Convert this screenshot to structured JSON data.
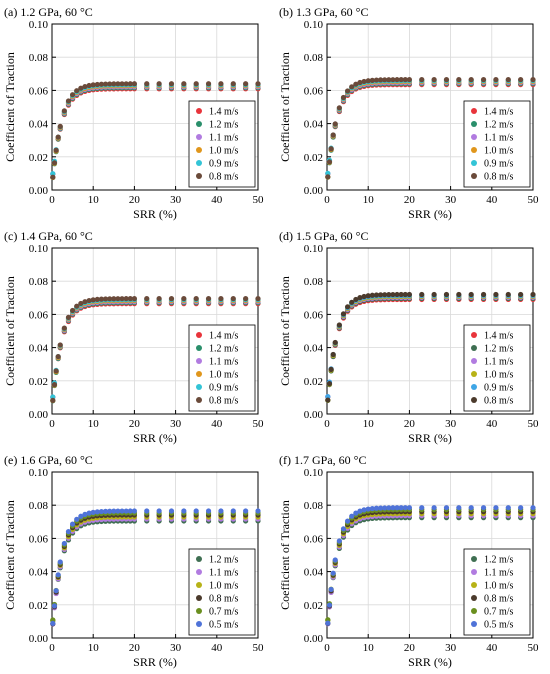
{
  "colors": {
    "red": "#e8343b",
    "green": "#2a8f6b",
    "violet": "#b17be0",
    "orange": "#e0961c",
    "cyan": "#33c4d6",
    "brown": "#6a4a3a",
    "darkgreen": "#3f6f52",
    "olive": "#b7b217",
    "darkbrown": "#4b3a2c",
    "mossgreen": "#6a8f1f",
    "blue": "#4f73d8",
    "skyblue": "#3fa6e6"
  },
  "chart_data": [
    {
      "type": "scatter",
      "title": "(a) 1.2 GPa, 60 °C",
      "xlabel": "SRR (%)",
      "ylabel": "Coefficient of Traction",
      "xlim": [
        0,
        50
      ],
      "ylim": [
        0,
        0.1
      ],
      "xticks": [
        "0",
        "10",
        "20",
        "30",
        "40",
        "50"
      ],
      "yticks": [
        "0.00",
        "0.02",
        "0.04",
        "0.06",
        "0.08",
        "0.10"
      ],
      "grid": true,
      "legend": "bottom-right",
      "plateau": 0.0625,
      "spread": 0.0015,
      "series": [
        {
          "name": "1.4 m/s",
          "color": "#e8343b"
        },
        {
          "name": "1.2 m/s",
          "color": "#2a8f6b"
        },
        {
          "name": "1.1 m/s",
          "color": "#b17be0"
        },
        {
          "name": "1.0 m/s",
          "color": "#e0961c"
        },
        {
          "name": "0.9 m/s",
          "color": "#33c4d6"
        },
        {
          "name": "0.8 m/s",
          "color": "#6a4a3a"
        }
      ]
    },
    {
      "type": "scatter",
      "title": "(b) 1.3 GPa, 60 °C",
      "xlabel": "SRR (%)",
      "ylabel": "Coefficient of Traction",
      "xlim": [
        0,
        50
      ],
      "ylim": [
        0,
        0.1
      ],
      "xticks": [
        "0",
        "10",
        "20",
        "30",
        "40",
        "50"
      ],
      "yticks": [
        "0.00",
        "0.02",
        "0.04",
        "0.06",
        "0.08",
        "0.10"
      ],
      "grid": true,
      "legend": "bottom-right",
      "plateau": 0.065,
      "spread": 0.0015,
      "series": [
        {
          "name": "1.4 m/s",
          "color": "#e8343b"
        },
        {
          "name": "1.2 m/s",
          "color": "#2a8f6b"
        },
        {
          "name": "1.1 m/s",
          "color": "#b17be0"
        },
        {
          "name": "1.0 m/s",
          "color": "#e0961c"
        },
        {
          "name": "0.9 m/s",
          "color": "#33c4d6"
        },
        {
          "name": "0.8 m/s",
          "color": "#6a4a3a"
        }
      ]
    },
    {
      "type": "scatter",
      "title": "(c) 1.4 GPa, 60 °C",
      "xlabel": "SRR (%)",
      "ylabel": "Coefficient of Traction",
      "xlim": [
        0,
        50
      ],
      "ylim": [
        0,
        0.1
      ],
      "xticks": [
        "0",
        "10",
        "20",
        "30",
        "40",
        "50"
      ],
      "yticks": [
        "0.00",
        "0.02",
        "0.04",
        "0.06",
        "0.08",
        "0.10"
      ],
      "grid": true,
      "legend": "bottom-right",
      "plateau": 0.068,
      "spread": 0.0015,
      "series": [
        {
          "name": "1.4 m/s",
          "color": "#e8343b"
        },
        {
          "name": "1.2 m/s",
          "color": "#2a8f6b"
        },
        {
          "name": "1.1 m/s",
          "color": "#b17be0"
        },
        {
          "name": "1.0 m/s",
          "color": "#e0961c"
        },
        {
          "name": "0.9 m/s",
          "color": "#33c4d6"
        },
        {
          "name": "0.8 m/s",
          "color": "#6a4a3a"
        }
      ]
    },
    {
      "type": "scatter",
      "title": "(d) 1.5 GPa, 60 °C",
      "xlabel": "SRR (%)",
      "ylabel": "Coefficient of Traction",
      "xlim": [
        0,
        50
      ],
      "ylim": [
        0,
        0.1
      ],
      "xticks": [
        "0",
        "10",
        "20",
        "30",
        "40",
        "50"
      ],
      "yticks": [
        "0.00",
        "0.02",
        "0.04",
        "0.06",
        "0.08",
        "0.10"
      ],
      "grid": true,
      "legend": "bottom-right",
      "plateau": 0.0705,
      "spread": 0.0015,
      "series": [
        {
          "name": "1.4 m/s",
          "color": "#e8343b"
        },
        {
          "name": "1.2 m/s",
          "color": "#3f6f52"
        },
        {
          "name": "1.1 m/s",
          "color": "#b17be0"
        },
        {
          "name": "1.0 m/s",
          "color": "#b7b217"
        },
        {
          "name": "0.9 m/s",
          "color": "#3fa6e6"
        },
        {
          "name": "0.8 m/s",
          "color": "#4b3a2c"
        }
      ]
    },
    {
      "type": "scatter",
      "title": "(e) 1.6 GPa, 60 °C",
      "xlabel": "SRR (%)",
      "ylabel": "Coefficient of Traction",
      "xlim": [
        0,
        50
      ],
      "ylim": [
        0,
        0.1
      ],
      "xticks": [
        "0",
        "10",
        "20",
        "30",
        "40",
        "50"
      ],
      "yticks": [
        "0.00",
        "0.02",
        "0.04",
        "0.06",
        "0.08",
        "0.10"
      ],
      "grid": true,
      "legend": "bottom-right",
      "plateau": 0.0735,
      "spread": 0.003,
      "series": [
        {
          "name": "1.2 m/s",
          "color": "#3f6f52"
        },
        {
          "name": "1.1 m/s",
          "color": "#b17be0"
        },
        {
          "name": "1.0 m/s",
          "color": "#b7b217"
        },
        {
          "name": "0.8 m/s",
          "color": "#4b3a2c"
        },
        {
          "name": "0.7 m/s",
          "color": "#6a8f1f"
        },
        {
          "name": "0.5 m/s",
          "color": "#4f73d8"
        }
      ]
    },
    {
      "type": "scatter",
      "title": "(f) 1.7 GPa, 60 °C",
      "xlabel": "SRR (%)",
      "ylabel": "Coefficient of Traction",
      "xlim": [
        0,
        50
      ],
      "ylim": [
        0,
        0.1
      ],
      "xticks": [
        "0",
        "10",
        "20",
        "30",
        "40",
        "50"
      ],
      "yticks": [
        "0.00",
        "0.02",
        "0.04",
        "0.06",
        "0.08",
        "0.10"
      ],
      "grid": true,
      "legend": "bottom-right",
      "plateau": 0.0755,
      "spread": 0.003,
      "series": [
        {
          "name": "1.2 m/s",
          "color": "#3f6f52"
        },
        {
          "name": "1.1 m/s",
          "color": "#b17be0"
        },
        {
          "name": "1.0 m/s",
          "color": "#b7b217"
        },
        {
          "name": "0.8 m/s",
          "color": "#4b3a2c"
        },
        {
          "name": "0.7 m/s",
          "color": "#6a8f1f"
        },
        {
          "name": "0.5 m/s",
          "color": "#4f73d8"
        }
      ]
    }
  ]
}
